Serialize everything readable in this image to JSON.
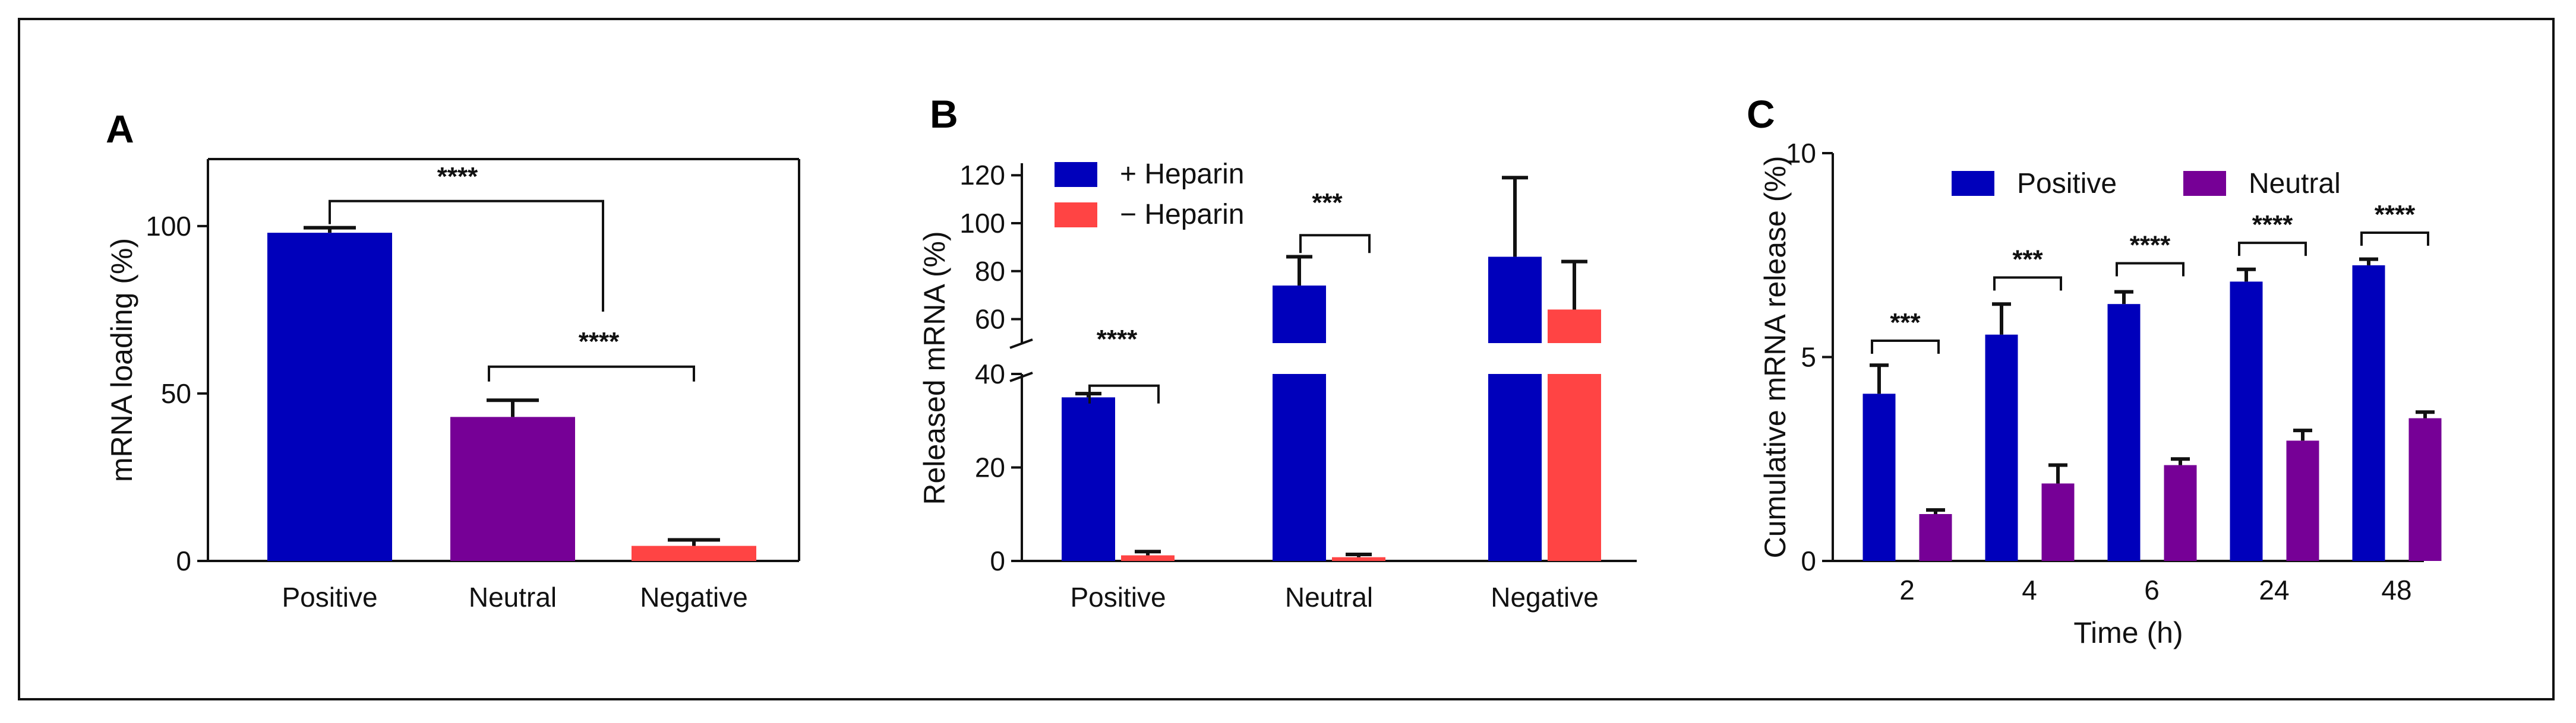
{
  "colors": {
    "positive": "#0000BB",
    "neutral": "#760096",
    "negative": "#FF4444",
    "heparin_plus": "#0000BB",
    "heparin_minus": "#FF4444",
    "axis": "#111111"
  },
  "chart_data": [
    {
      "panel": "A",
      "type": "bar",
      "title": "",
      "xlabel": "",
      "ylabel": "mRNA loading (%)",
      "ylim": [
        0,
        120
      ],
      "yticks": [
        0,
        50,
        100
      ],
      "categories": [
        "Positive",
        "Neutral",
        "Negative"
      ],
      "values": [
        98,
        43,
        4.5
      ],
      "errors": [
        1.5,
        5,
        1.8
      ],
      "bar_color_keys": [
        "positive",
        "neutral",
        "negative"
      ],
      "significance": [
        {
          "from": 0,
          "to": 2,
          "label": "****",
          "level": 108
        },
        {
          "from": 1,
          "to": 2,
          "label": "****",
          "level": 58
        }
      ]
    },
    {
      "panel": "B",
      "type": "bar",
      "title": "",
      "xlabel": "",
      "ylabel": "Released mRNA (%)",
      "broken_axis": {
        "lower": [
          0,
          40
        ],
        "upper": [
          50,
          125
        ]
      },
      "yticks": [
        0,
        20,
        40,
        60,
        80,
        100,
        120
      ],
      "categories": [
        "Positive",
        "Neutral",
        "Negative"
      ],
      "series": [
        {
          "name": "+ Heparin",
          "color_key": "heparin_plus",
          "values": [
            35,
            74,
            86
          ],
          "errors": [
            0.8,
            12,
            33
          ]
        },
        {
          "name": "− Heparin",
          "color_key": "heparin_minus",
          "values": [
            1.2,
            0.8,
            64
          ],
          "errors": [
            0.8,
            0.6,
            20
          ]
        }
      ],
      "legend": {
        "position": "top-left"
      },
      "significance": [
        {
          "category": 0,
          "label": "****",
          "level": 37.5
        },
        {
          "category": 1,
          "label": "***",
          "level": 95
        }
      ]
    },
    {
      "panel": "C",
      "type": "bar",
      "title": "",
      "xlabel": "Time (h)",
      "ylabel": "Cumulative mRNA release (%)",
      "ylim": [
        0,
        10
      ],
      "yticks": [
        0,
        5,
        10
      ],
      "categories": [
        "2",
        "4",
        "6",
        "24",
        "48"
      ],
      "series": [
        {
          "name": "Positive",
          "color_key": "positive",
          "values": [
            4.1,
            5.55,
            6.3,
            6.85,
            7.25
          ],
          "errors": [
            0.7,
            0.75,
            0.3,
            0.3,
            0.15
          ]
        },
        {
          "name": "Neutral",
          "color_key": "neutral",
          "values": [
            1.15,
            1.9,
            2.35,
            2.95,
            3.5
          ],
          "errors": [
            0.1,
            0.45,
            0.15,
            0.25,
            0.15
          ]
        }
      ],
      "legend": {
        "position": "top"
      },
      "significance": [
        {
          "category": 0,
          "label": "***",
          "level": 5.4
        },
        {
          "category": 1,
          "label": "***",
          "level": 6.95
        },
        {
          "category": 2,
          "label": "****",
          "level": 7.3
        },
        {
          "category": 3,
          "label": "****",
          "level": 7.8
        },
        {
          "category": 4,
          "label": "****",
          "level": 8.05
        }
      ]
    }
  ]
}
